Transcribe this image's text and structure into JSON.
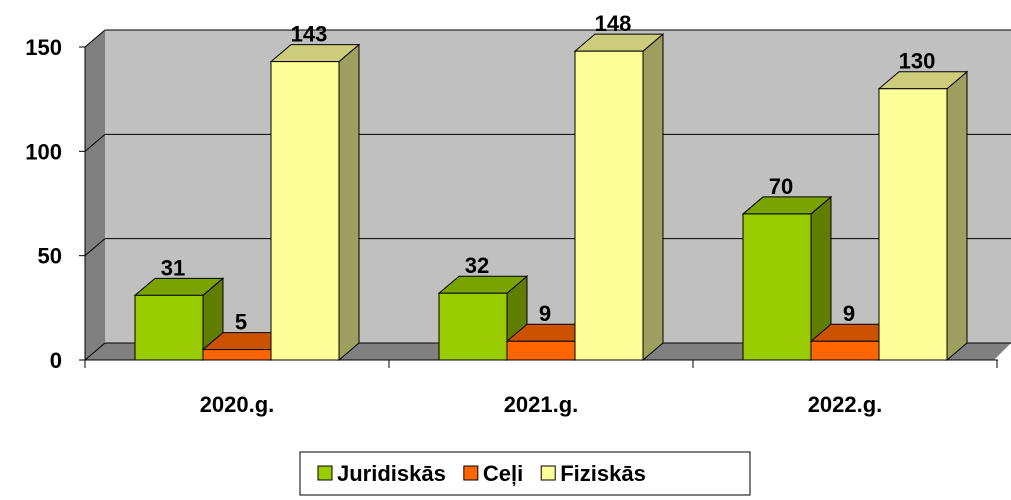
{
  "chart_data": {
    "type": "bar",
    "categories": [
      "2020.g.",
      "2021.g.",
      "2022.g."
    ],
    "series": [
      {
        "name": "Juridiskās",
        "color": "#99cc00",
        "values": [
          31,
          32,
          70
        ]
      },
      {
        "name": "Ceļi",
        "color": "#ff6600",
        "values": [
          5,
          9,
          9
        ]
      },
      {
        "name": "Fiziskās",
        "color": "#ffff99",
        "values": [
          143,
          148,
          130
        ]
      }
    ],
    "ylim": [
      0,
      150
    ],
    "yticks": [
      0,
      50,
      100,
      150
    ],
    "grid": true,
    "legend": "bottom"
  }
}
